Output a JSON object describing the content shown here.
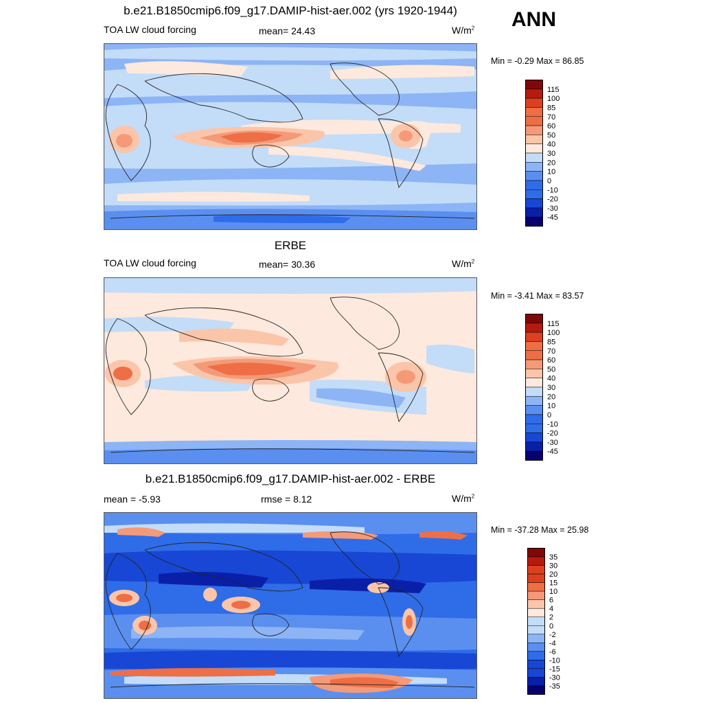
{
  "season": "ANN",
  "colors": {
    "levels": [
      "#08006f",
      "#0a1fa8",
      "#1747d4",
      "#2f6ce8",
      "#5a8ff0",
      "#8db4f5",
      "#c3dcf8",
      "#fde9dd",
      "#fbc5aa",
      "#f49a78",
      "#ee6e45",
      "#dd4020",
      "#b51a0f",
      "#800808"
    ]
  },
  "panels": [
    {
      "id": "model",
      "title": "b.e21.B1850cmip6.f09_g17.DAMIP-hist-aer.002 (yrs 1920-1944)",
      "left_label": "TOA LW cloud forcing",
      "stat_label": "mean=  24.43",
      "units": "W/m",
      "units_sup": "2",
      "minmax": "Min =  -0.29 Max =  86.85",
      "colorbar": [
        "115",
        "100",
        "85",
        "70",
        "60",
        "50",
        "40",
        "30",
        "20",
        "10",
        "0",
        "-10",
        "-20",
        "-30",
        "-45"
      ]
    },
    {
      "id": "obs",
      "title": "ERBE",
      "left_label": "TOA LW cloud forcing",
      "stat_label": "mean=  30.36",
      "units": "W/m",
      "units_sup": "2",
      "minmax": "Min =  -3.41 Max =  83.57",
      "colorbar": [
        "115",
        "100",
        "85",
        "70",
        "60",
        "50",
        "40",
        "30",
        "20",
        "10",
        "0",
        "-10",
        "-20",
        "-30",
        "-45"
      ]
    },
    {
      "id": "diff",
      "title": "b.e21.B1850cmip6.f09_g17.DAMIP-hist-aer.002 - ERBE",
      "left_label": "mean =  -5.93",
      "stat_label": "rmse =   8.12",
      "units": "W/m",
      "units_sup": "2",
      "minmax": "Min = -37.28 Max =  25.98",
      "colorbar": [
        "35",
        "30",
        "20",
        "15",
        "10",
        "6",
        "4",
        "2",
        "0",
        "-2",
        "-4",
        "-6",
        "-10",
        "-15",
        "-30",
        "-35"
      ]
    }
  ]
}
